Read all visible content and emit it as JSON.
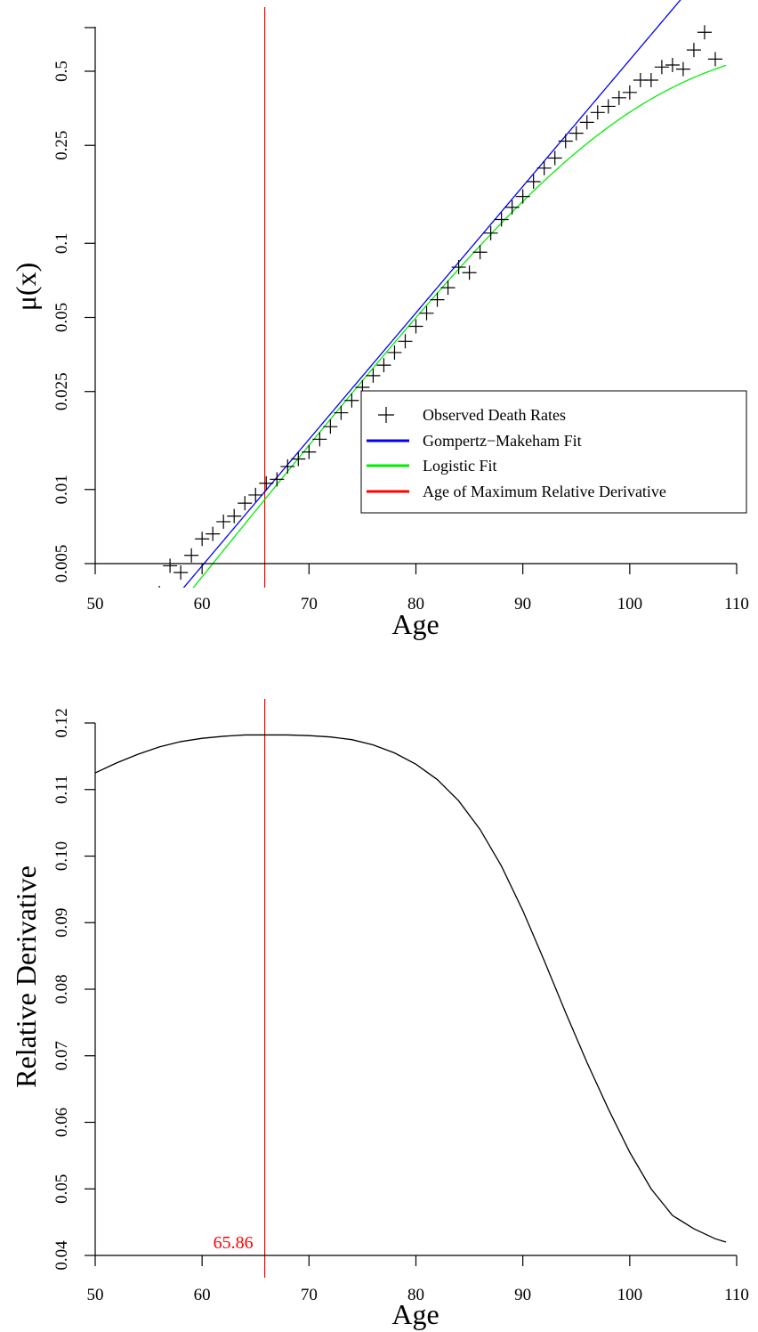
{
  "chart_data": [
    {
      "type": "scatter",
      "xlabel": "Age",
      "ylabel": "μ(x)",
      "y_scale": "log",
      "xlim": [
        50,
        110
      ],
      "ylim": [
        0.0045,
        0.8
      ],
      "x_ticks": [
        50,
        60,
        70,
        80,
        90,
        100,
        110
      ],
      "y_ticks": [
        0.005,
        0.01,
        0.025,
        0.05,
        0.1,
        0.25,
        0.5
      ],
      "y_tick_labels": [
        "0.005",
        "0.01",
        "0.025",
        "0.05",
        "0.1",
        "0.25",
        "0.5"
      ],
      "grid": false,
      "legend_position": "right",
      "legend": [
        {
          "label": "Observed Death Rates",
          "color": "#000000",
          "marker": "plus"
        },
        {
          "label": "Gompertz−Makeham Fit",
          "color": "#0000ff",
          "marker": "line"
        },
        {
          "label": "Logistic Fit",
          "color": "#00ee00",
          "marker": "line"
        },
        {
          "label": "Age of Maximum Relative Derivative",
          "color": "#ff0000",
          "marker": "line"
        }
      ],
      "series": [
        {
          "name": "Observed Death Rates",
          "color": "#000000",
          "x": [
            56,
            57,
            58,
            59,
            60,
            61,
            62,
            63,
            64,
            65,
            66,
            67,
            68,
            69,
            70,
            71,
            72,
            73,
            74,
            75,
            76,
            77,
            78,
            79,
            80,
            81,
            82,
            83,
            84,
            85,
            86,
            87,
            88,
            89,
            90,
            91,
            92,
            93,
            94,
            95,
            96,
            97,
            98,
            99,
            100,
            101,
            102,
            103,
            104,
            105,
            106,
            107,
            108
          ],
          "y": [
            0.0038,
            0.0049,
            0.0046,
            0.0054,
            0.0063,
            0.0066,
            0.0074,
            0.0078,
            0.0088,
            0.0095,
            0.0106,
            0.011,
            0.0124,
            0.0133,
            0.0142,
            0.016,
            0.018,
            0.0205,
            0.023,
            0.026,
            0.029,
            0.032,
            0.036,
            0.04,
            0.046,
            0.052,
            0.059,
            0.066,
            0.08,
            0.076,
            0.092,
            0.11,
            0.125,
            0.14,
            0.155,
            0.178,
            0.202,
            0.222,
            0.26,
            0.28,
            0.31,
            0.34,
            0.36,
            0.39,
            0.41,
            0.46,
            0.46,
            0.52,
            0.53,
            0.51,
            0.61,
            0.72,
            0.56
          ]
        },
        {
          "name": "Gompertz−Makeham Fit",
          "color": "#0000ff",
          "function": "gompertz",
          "params": {
            "a": 0.0015,
            "b": 0.1183,
            "x0": 50
          },
          "x_range": [
            56,
            109
          ]
        },
        {
          "name": "Logistic Fit",
          "color": "#00ee00",
          "function": "logistic",
          "params": {
            "a": 0.00128,
            "b": 0.1245,
            "K": 0.72,
            "x0": 50
          },
          "x_range": [
            58,
            109
          ]
        }
      ],
      "vline": {
        "x": 65.86,
        "color": "#ff0000"
      }
    },
    {
      "type": "line",
      "xlabel": "Age",
      "ylabel": "Relative Derivative",
      "xlim": [
        50,
        110
      ],
      "ylim": [
        0.04,
        0.12
      ],
      "x_ticks": [
        50,
        60,
        70,
        80,
        90,
        100,
        110
      ],
      "y_ticks": [
        0.04,
        0.05,
        0.06,
        0.07,
        0.08,
        0.09,
        0.1,
        0.11,
        0.12
      ],
      "y_tick_labels": [
        "0.04",
        "0.05",
        "0.06",
        "0.07",
        "0.08",
        "0.09",
        "0.10",
        "0.11",
        "0.12"
      ],
      "grid": false,
      "series": [
        {
          "color": "#000000",
          "x": [
            50,
            52,
            54,
            56,
            58,
            60,
            62,
            64,
            65.86,
            68,
            70,
            72,
            74,
            76,
            78,
            80,
            82,
            84,
            86,
            88,
            90,
            92,
            94,
            96,
            98,
            100,
            102,
            104,
            106,
            108,
            109
          ],
          "y": [
            0.1125,
            0.114,
            0.1153,
            0.1164,
            0.1172,
            0.1177,
            0.118,
            0.1182,
            0.1182,
            0.1182,
            0.1181,
            0.1179,
            0.1175,
            0.1167,
            0.1155,
            0.1138,
            0.1115,
            0.1083,
            0.104,
            0.0985,
            0.0918,
            0.0843,
            0.0765,
            0.069,
            0.062,
            0.0555,
            0.05,
            0.046,
            0.044,
            0.0425,
            0.042
          ]
        }
      ],
      "vline": {
        "x": 65.86,
        "color": "#ff0000"
      },
      "annotation": {
        "text": "65.86",
        "x": 65.86,
        "color": "#ff0000"
      }
    }
  ]
}
